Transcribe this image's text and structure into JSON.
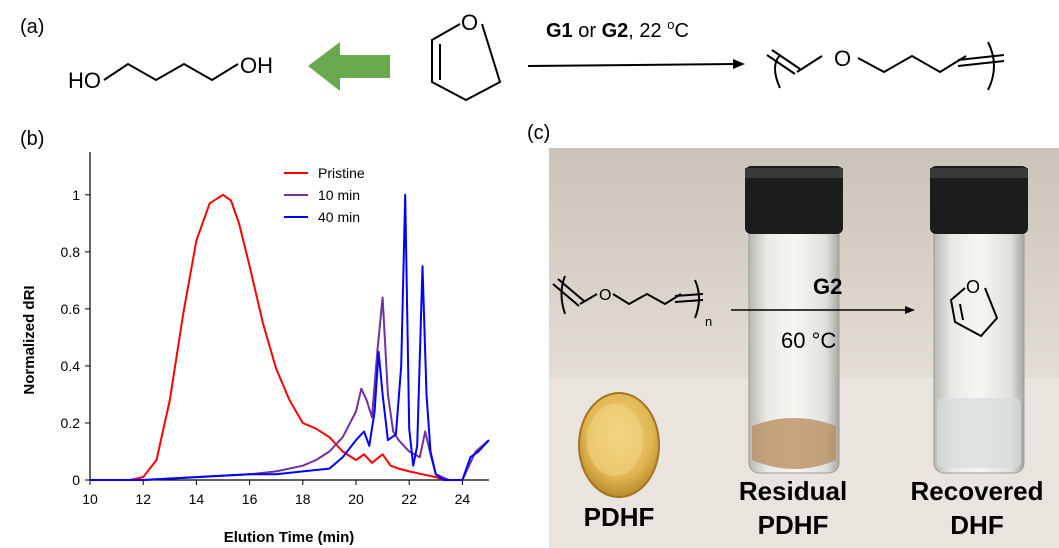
{
  "panels": {
    "a": "(a)",
    "b": "(b)",
    "c": "(c)"
  },
  "scheme": {
    "diol_left": "HO",
    "diol_right": "OH",
    "dhf_o": "O",
    "condition_g1": "G1",
    "condition_or": " or ",
    "condition_g2": "G2",
    "condition_temp": ", 22 ",
    "condition_sup": "o",
    "condition_c": "C",
    "polymer_o": "O",
    "arrow_color": "#6aa84f"
  },
  "chart_data": {
    "type": "line",
    "xlabel": "Elution Time (min)",
    "ylabel": "Normalized dRI",
    "xlim": [
      10,
      25
    ],
    "ylim": [
      0,
      1.15
    ],
    "xticks": [
      "10",
      "12",
      "14",
      "16",
      "18",
      "20",
      "22",
      "24"
    ],
    "yticks": [
      "0",
      "0.2",
      "0.4",
      "0.6",
      "0.8",
      "1"
    ],
    "legend_position": "top-right",
    "series": [
      {
        "name": "Pristine",
        "color": "#ff0000",
        "x": [
          10,
          11.5,
          12.0,
          12.5,
          13.0,
          13.5,
          14.0,
          14.5,
          15.0,
          15.3,
          15.6,
          16.0,
          16.5,
          17.0,
          17.5,
          18.0,
          18.5,
          19.0,
          19.5,
          20.0,
          20.3,
          20.6,
          21.0,
          21.3,
          21.6,
          22.0,
          22.5,
          23.0,
          23.3,
          23.6,
          24.0
        ],
        "y": [
          0,
          0,
          0.01,
          0.07,
          0.28,
          0.58,
          0.84,
          0.97,
          1.0,
          0.98,
          0.9,
          0.75,
          0.55,
          0.39,
          0.28,
          0.2,
          0.18,
          0.15,
          0.1,
          0.07,
          0.09,
          0.06,
          0.09,
          0.05,
          0.04,
          0.03,
          0.02,
          0.01,
          0.0,
          0.0,
          0.0
        ]
      },
      {
        "name": "10 min",
        "color": "#7030a0",
        "x": [
          10,
          12,
          14,
          16,
          17,
          18,
          18.5,
          19.0,
          19.5,
          20.0,
          20.2,
          20.4,
          20.6,
          20.8,
          21.0,
          21.2,
          21.4,
          21.6,
          21.8,
          22.0,
          22.2,
          22.4,
          22.6,
          22.8,
          23.0,
          23.5,
          24.0,
          24.5,
          25.0
        ],
        "y": [
          0,
          0,
          0.01,
          0.02,
          0.03,
          0.05,
          0.07,
          0.1,
          0.15,
          0.24,
          0.32,
          0.28,
          0.22,
          0.45,
          0.64,
          0.3,
          0.17,
          0.14,
          0.12,
          0.1,
          0.09,
          0.08,
          0.17,
          0.09,
          0.02,
          0.0,
          0.0,
          0.1,
          0.14
        ]
      },
      {
        "name": "40 min",
        "color": "#0000ff",
        "x": [
          10,
          12,
          14,
          16,
          17,
          18,
          19.0,
          19.5,
          20.0,
          20.3,
          20.5,
          20.7,
          20.85,
          21.0,
          21.2,
          21.5,
          21.7,
          21.85,
          22.0,
          22.15,
          22.3,
          22.5,
          22.65,
          22.8,
          23.0,
          23.3,
          23.6,
          24.0,
          24.3,
          24.6,
          25.0
        ],
        "y": [
          0,
          0,
          0.01,
          0.02,
          0.02,
          0.03,
          0.04,
          0.08,
          0.14,
          0.17,
          0.12,
          0.24,
          0.45,
          0.3,
          0.14,
          0.16,
          0.4,
          1.0,
          0.18,
          0.05,
          0.12,
          0.75,
          0.3,
          0.1,
          0.02,
          0.0,
          0.0,
          0.0,
          0.08,
          0.1,
          0.14
        ]
      }
    ]
  },
  "photo": {
    "reaction_label": "G2",
    "reaction_temp": "60 °C",
    "subscript": "n",
    "ring_o": "O",
    "label_1": "PDHF",
    "label_2_line1": "Residual",
    "label_2_line2": "PDHF",
    "label_3_line1": "Recovered",
    "label_3_line2": "DHF"
  }
}
